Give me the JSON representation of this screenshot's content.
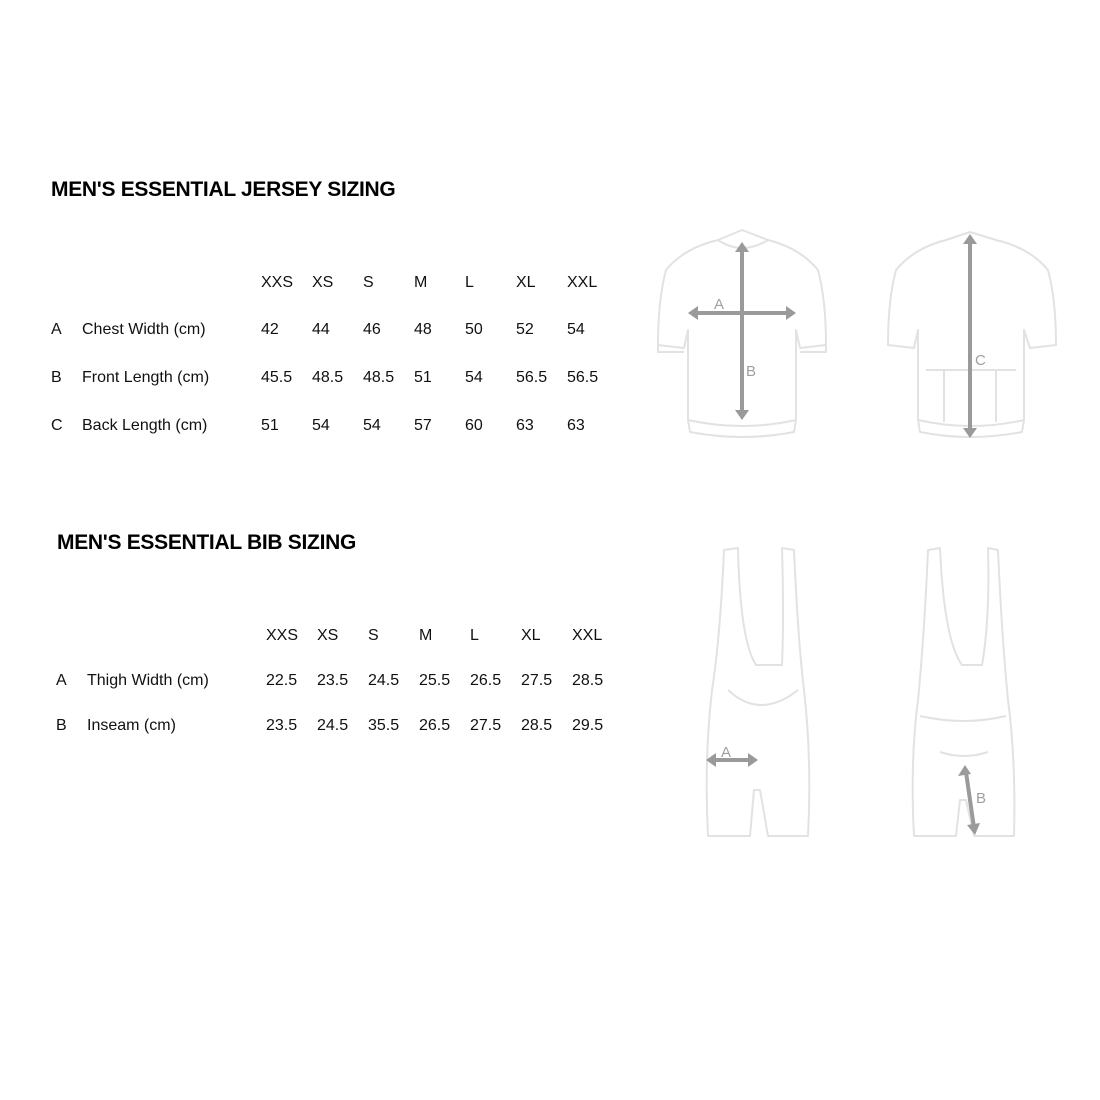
{
  "jersey": {
    "title": "MEN'S ESSENTIAL JERSEY SIZING",
    "sizes": [
      "XXS",
      "XS",
      "S",
      "M",
      "L",
      "XL",
      "XXL"
    ],
    "rows": [
      {
        "key": "A",
        "label": "Chest Width (cm)",
        "values": [
          "42",
          "44",
          "46",
          "48",
          "50",
          "52",
          "54"
        ]
      },
      {
        "key": "B",
        "label": "Front Length (cm)",
        "values": [
          "45.5",
          "48.5",
          "48.5",
          "51",
          "54",
          "56.5",
          "56.5"
        ]
      },
      {
        "key": "C",
        "label": "Back Length (cm)",
        "values": [
          "51",
          "54",
          "54",
          "57",
          "60",
          "63",
          "63"
        ]
      }
    ],
    "diagram_labels": {
      "front_a": "A",
      "front_b": "B",
      "back_c": "C"
    }
  },
  "bib": {
    "title": "MEN'S ESSENTIAL BIB SIZING",
    "sizes": [
      "XXS",
      "XS",
      "S",
      "M",
      "L",
      "XL",
      "XXL"
    ],
    "rows": [
      {
        "key": "A",
        "label": "Thigh Width (cm)",
        "values": [
          "22.5",
          "23.5",
          "24.5",
          "25.5",
          "26.5",
          "27.5",
          "28.5"
        ]
      },
      {
        "key": "B",
        "label": "Inseam (cm)",
        "values": [
          "23.5",
          "24.5",
          "35.5",
          "26.5",
          "27.5",
          "28.5",
          "29.5"
        ]
      }
    ],
    "diagram_labels": {
      "front_a": "A",
      "back_b": "B"
    }
  },
  "colors": {
    "outline": "#e2e2e2",
    "arrow": "#9a9a9a",
    "text": "#111111"
  }
}
